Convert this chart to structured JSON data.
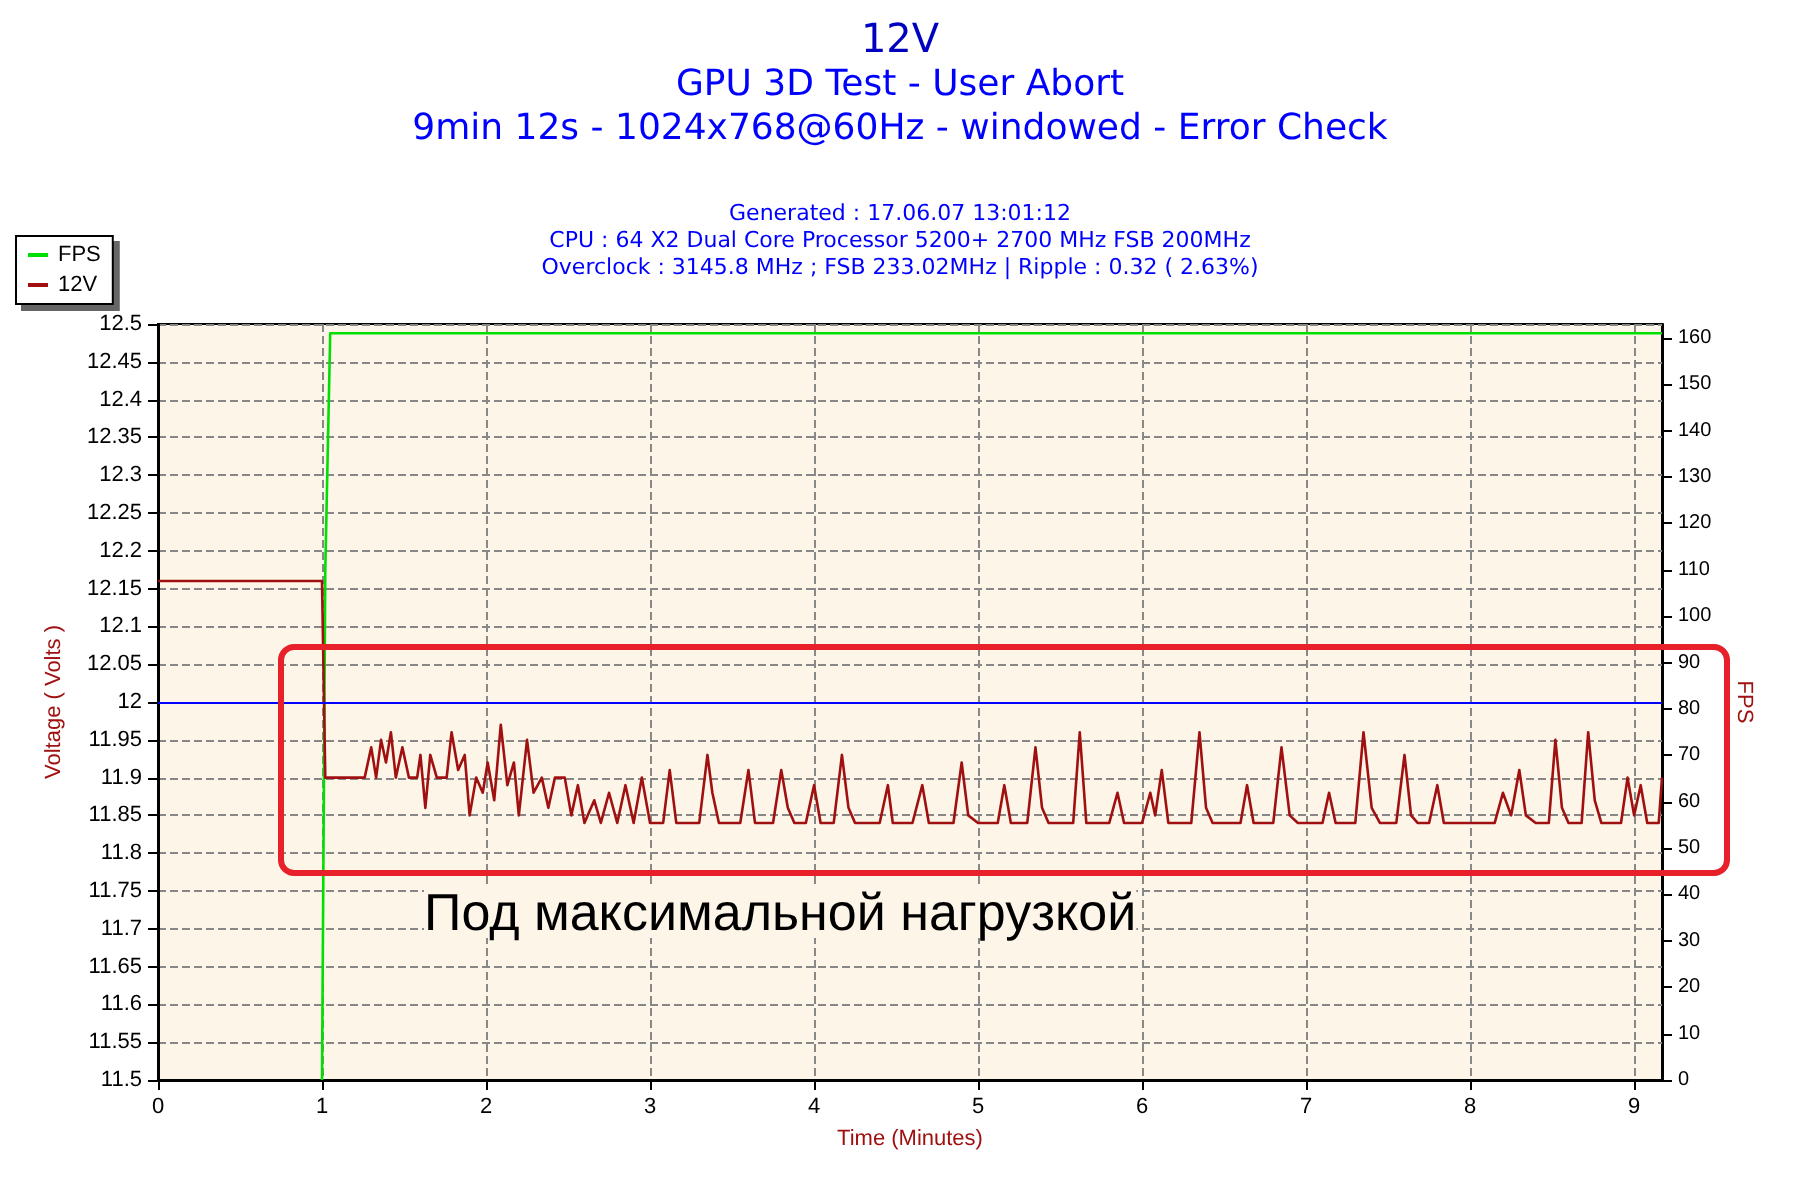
{
  "chart_data": {
    "type": "line",
    "title": "12V",
    "subtitle": "GPU 3D Test - User Abort\n9min 12s - 1024x768@60Hz - windowed - Error Check",
    "annotations": [
      "Generated : 17.06.07 13:01:12",
      "CPU : 64 X2 Dual Core Processor 5200+ 2700 MHz FSB 200MHz",
      "Overclock : 3145.8 MHz ; FSB 233.02MHz | Ripple : 0.32 ( 2.63%)",
      "Под максимальной нагрузкой"
    ],
    "xlabel": "Time (Minutes)",
    "ylabel": "Voltage ( Volts )",
    "y2label": "FPS",
    "series": [
      {
        "name": "FPS",
        "color": "#00e000",
        "axis": "y2",
        "x": [
          1.0,
          1.02,
          1.05,
          9.17
        ],
        "values": [
          0,
          110,
          161,
          161
        ]
      },
      {
        "name": "12V",
        "color": "#a01010",
        "x": [
          0,
          1.0,
          1.02,
          1.26,
          1.3,
          1.33,
          1.36,
          1.39,
          1.42,
          1.45,
          1.49,
          1.53,
          1.58,
          1.6,
          1.63,
          1.66,
          1.7,
          1.76,
          1.79,
          1.83,
          1.87,
          1.9,
          1.94,
          1.98,
          2.01,
          2.05,
          2.09,
          2.13,
          2.17,
          2.2,
          2.25,
          2.29,
          2.34,
          2.38,
          2.42,
          2.48,
          2.52,
          2.56,
          2.6,
          2.66,
          2.7,
          2.75,
          2.8,
          2.85,
          2.9,
          2.95,
          3.0,
          3.08,
          3.12,
          3.16,
          3.3,
          3.35,
          3.38,
          3.42,
          3.55,
          3.6,
          3.64,
          3.75,
          3.8,
          3.84,
          3.88,
          3.95,
          4.0,
          4.04,
          4.12,
          4.17,
          4.21,
          4.25,
          4.4,
          4.45,
          4.48,
          4.6,
          4.66,
          4.7,
          4.85,
          4.9,
          4.94,
          5.0,
          5.12,
          5.16,
          5.2,
          5.3,
          5.35,
          5.39,
          5.43,
          5.58,
          5.62,
          5.66,
          5.8,
          5.85,
          5.89,
          6.0,
          6.05,
          6.08,
          6.12,
          6.16,
          6.3,
          6.35,
          6.39,
          6.43,
          6.6,
          6.64,
          6.68,
          6.8,
          6.85,
          6.9,
          6.95,
          7.1,
          7.14,
          7.18,
          7.3,
          7.35,
          7.4,
          7.45,
          7.55,
          7.6,
          7.64,
          7.68,
          7.75,
          7.8,
          7.84,
          8.0,
          8.15,
          8.2,
          8.25,
          8.3,
          8.34,
          8.4,
          8.48,
          8.52,
          8.56,
          8.6,
          8.68,
          8.72,
          8.76,
          8.8,
          8.92,
          8.96,
          9.0,
          9.04,
          9.08,
          9.15,
          9.17
        ],
        "values": [
          12.16,
          12.16,
          11.9,
          11.9,
          11.94,
          11.9,
          11.95,
          11.92,
          11.96,
          11.9,
          11.94,
          11.9,
          11.9,
          11.93,
          11.86,
          11.93,
          11.9,
          11.9,
          11.96,
          11.91,
          11.93,
          11.85,
          11.9,
          11.88,
          11.92,
          11.87,
          11.97,
          11.89,
          11.92,
          11.85,
          11.95,
          11.88,
          11.9,
          11.86,
          11.9,
          11.9,
          11.85,
          11.89,
          11.84,
          11.87,
          11.84,
          11.88,
          11.84,
          11.89,
          11.84,
          11.9,
          11.84,
          11.84,
          11.91,
          11.84,
          11.84,
          11.93,
          11.88,
          11.84,
          11.84,
          11.91,
          11.84,
          11.84,
          11.91,
          11.86,
          11.84,
          11.84,
          11.89,
          11.84,
          11.84,
          11.93,
          11.86,
          11.84,
          11.84,
          11.89,
          11.84,
          11.84,
          11.89,
          11.84,
          11.84,
          11.92,
          11.85,
          11.84,
          11.84,
          11.89,
          11.84,
          11.84,
          11.94,
          11.86,
          11.84,
          11.84,
          11.96,
          11.84,
          11.84,
          11.88,
          11.84,
          11.84,
          11.88,
          11.85,
          11.91,
          11.84,
          11.84,
          11.96,
          11.86,
          11.84,
          11.84,
          11.89,
          11.84,
          11.84,
          11.94,
          11.85,
          11.84,
          11.84,
          11.88,
          11.84,
          11.84,
          11.96,
          11.86,
          11.84,
          11.84,
          11.93,
          11.85,
          11.84,
          11.84,
          11.89,
          11.84,
          11.84,
          11.84,
          11.88,
          11.85,
          11.91,
          11.85,
          11.84,
          11.84,
          11.95,
          11.86,
          11.84,
          11.84,
          11.96,
          11.87,
          11.84,
          11.84,
          11.9,
          11.85,
          11.89,
          11.84,
          11.84,
          11.9
        ]
      }
    ],
    "xlim": [
      0,
      9.17
    ],
    "xticks": [
      0,
      1,
      2,
      3,
      4,
      5,
      6,
      7,
      8,
      9
    ],
    "ylim": [
      11.5,
      12.5
    ],
    "yticks": [
      11.5,
      11.55,
      11.6,
      11.65,
      11.7,
      11.75,
      11.8,
      11.85,
      11.9,
      11.95,
      12,
      12.05,
      12.1,
      12.15,
      12.2,
      12.25,
      12.3,
      12.35,
      12.4,
      12.45,
      12.5
    ],
    "y2lim": [
      0,
      163
    ],
    "y2ticks": [
      0,
      10,
      20,
      30,
      40,
      50,
      60,
      70,
      80,
      90,
      100,
      110,
      120,
      130,
      140,
      150,
      160
    ],
    "ref_lines": [
      {
        "axis": "y",
        "value": 12,
        "color": "#0000ff"
      }
    ],
    "grid": true,
    "legend": "top left",
    "marker": "none",
    "line_style": "solid"
  }
}
